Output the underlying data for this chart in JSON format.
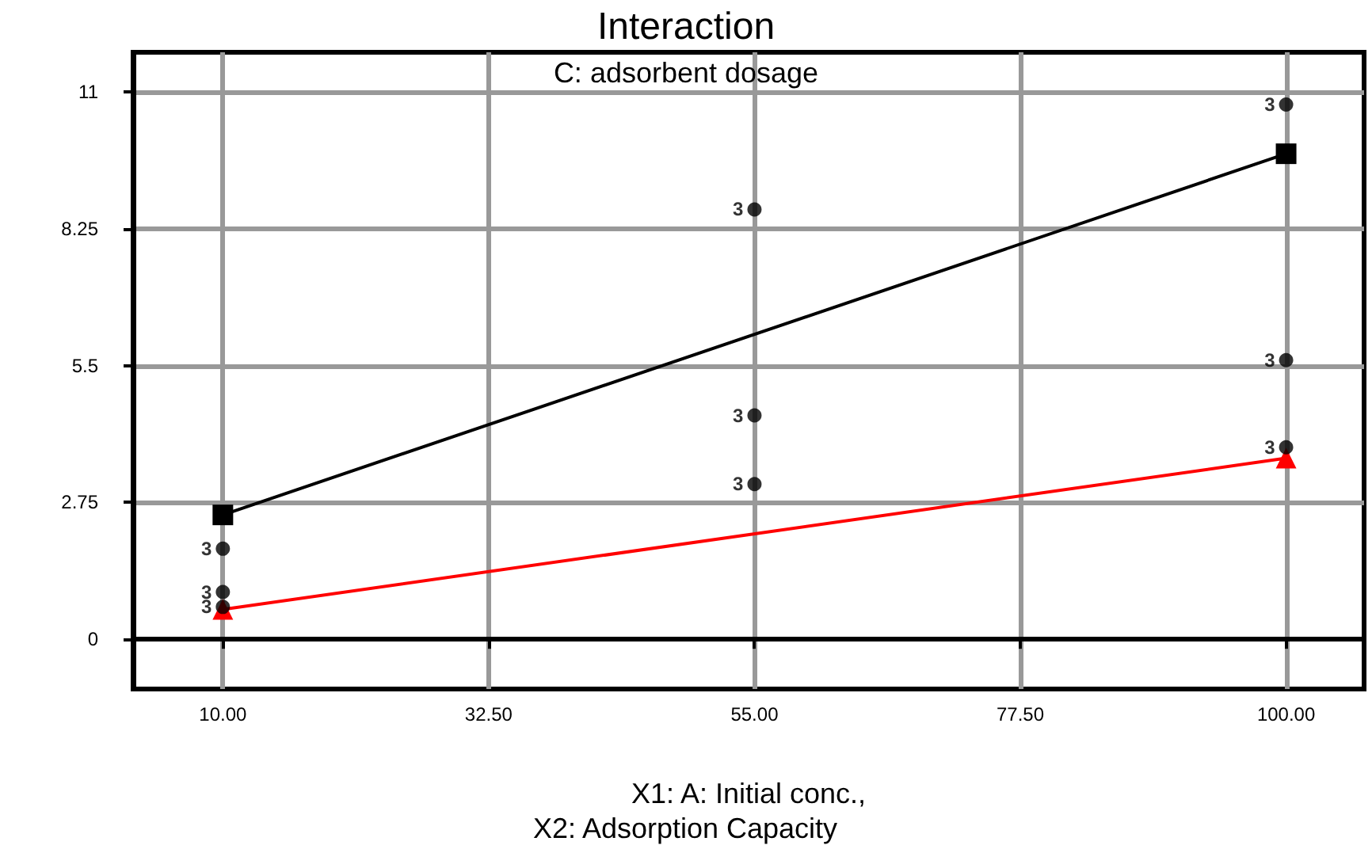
{
  "chart_data": {
    "type": "line",
    "title": "Interaction",
    "subtitle": "C: adsorbent dosage",
    "xlabel": "X1: A: Initial conc.,",
    "annotations": [
      "X2: Adsorption Capacity",
      {
        "text": "3",
        "x": 10,
        "y": 1.82
      },
      {
        "text": "3",
        "x": 10,
        "y": 0.95
      },
      {
        "text": "3",
        "x": 10,
        "y": 0.65
      },
      {
        "text": "3",
        "x": 55,
        "y": 8.64
      },
      {
        "text": "3",
        "x": 55,
        "y": 4.5
      },
      {
        "text": "3",
        "x": 55,
        "y": 3.12
      },
      {
        "text": "3",
        "x": 100,
        "y": 10.75
      },
      {
        "text": "3",
        "x": 100,
        "y": 5.61
      },
      {
        "text": "3",
        "x": 100,
        "y": 3.86
      }
    ],
    "xlim": [
      2.4,
      106.6
    ],
    "xticks": [
      {
        "value": 10,
        "label": "10.00"
      },
      {
        "value": 32.5,
        "label": "32.50"
      },
      {
        "value": 55,
        "label": "55.00"
      },
      {
        "value": 77.5,
        "label": "77.50"
      },
      {
        "value": 100,
        "label": "100.00"
      }
    ],
    "ylim": [
      -1,
      11.8
    ],
    "yticks": [
      0,
      2.75,
      5.5,
      8.25,
      11
    ],
    "grid": true,
    "line_style": "solid",
    "series": [
      {
        "color": "#000000",
        "marker": "square",
        "x": [
          10,
          100
        ],
        "values": [
          2.5,
          9.76
        ]
      },
      {
        "color": "#ff0000",
        "marker": "triangle",
        "x": [
          10,
          100
        ],
        "values": [
          0.6,
          3.64
        ]
      },
      {
        "type": "scatter",
        "color": "#000000",
        "marker": "circle",
        "x": [
          10,
          10,
          10,
          55,
          55,
          55,
          100,
          100,
          100
        ],
        "values": [
          1.82,
          0.95,
          0.65,
          8.64,
          4.5,
          3.12,
          10.75,
          5.61,
          3.86
        ]
      }
    ]
  }
}
